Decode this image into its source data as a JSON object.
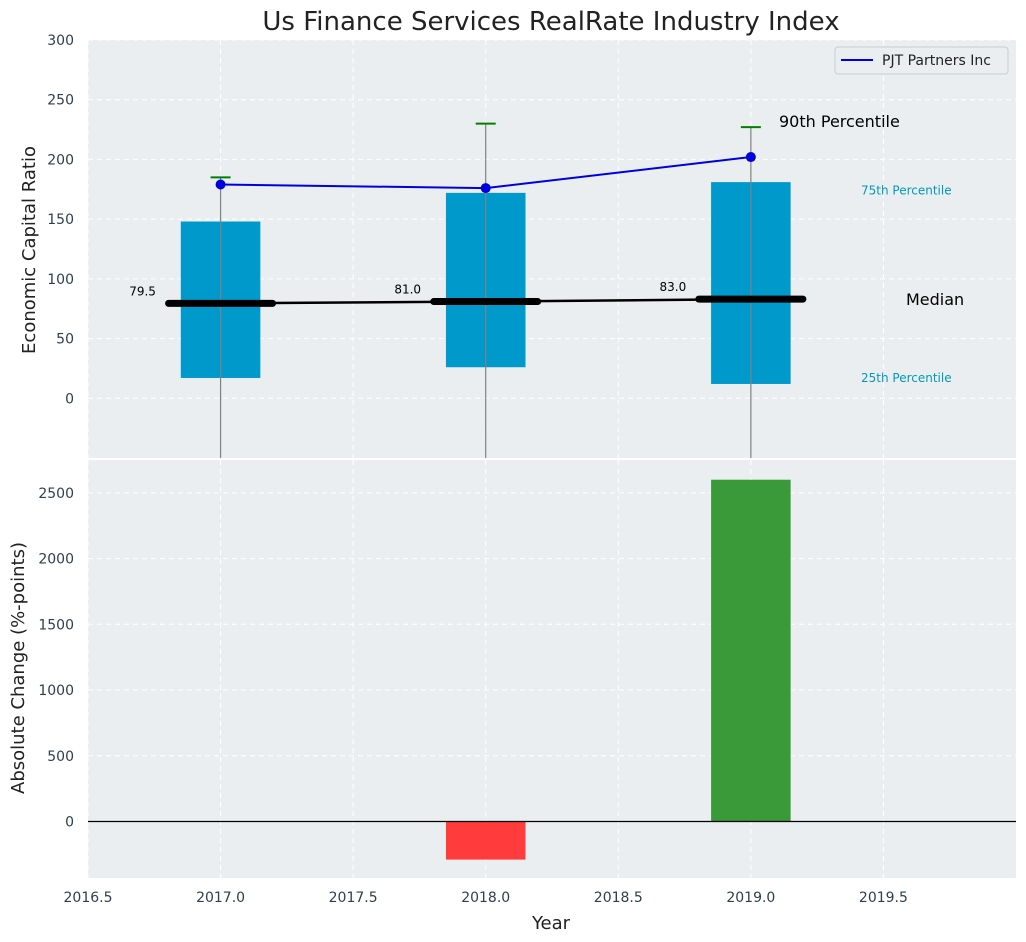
{
  "title": "Us Finance Services RealRate Industry Index",
  "colors": {
    "background": "#eaeef0",
    "box": "#0099cc",
    "company_line": "#0000dd",
    "median": "#000000",
    "whisker_cap": "#008000",
    "positive_change": "#3a9a3a",
    "negative_change": "#ff3b3b",
    "percentile_label": "#0099bb"
  },
  "chart_data": [
    {
      "type": "box",
      "ylabel": "Economic Capital Ratio",
      "ylim": [
        -50,
        300
      ],
      "yticks": [
        0,
        50,
        100,
        150,
        200,
        250,
        300
      ],
      "xlim": [
        2016.5,
        2020.0
      ],
      "grid": true,
      "legend": {
        "placement": "top-right",
        "entries": [
          "PJT Partners Inc"
        ]
      },
      "years": [
        2017,
        2018,
        2019
      ],
      "p25": [
        17,
        26,
        12
      ],
      "p75": [
        148,
        172,
        181
      ],
      "median": [
        79.5,
        81.0,
        83.0
      ],
      "median_labels": [
        "79.5",
        "81.0",
        "83.0"
      ],
      "p90": [
        185,
        230,
        227
      ],
      "series": [
        {
          "name": "PJT Partners Inc",
          "x": [
            2017,
            2018,
            2019
          ],
          "values": [
            179,
            176,
            202
          ]
        }
      ],
      "annotations": {
        "p90": "90th Percentile",
        "p75": "75th Percentile",
        "median": "Median",
        "p25": "25th Percentile"
      }
    },
    {
      "type": "bar",
      "xlabel": "Year",
      "ylabel": "Absolute Change (%-points)",
      "ylim": [
        -430,
        2750
      ],
      "yticks": [
        0,
        500,
        1000,
        1500,
        2000,
        2500
      ],
      "xlim": [
        2016.5,
        2020.0
      ],
      "xticks": [
        2016.5,
        2017.0,
        2017.5,
        2018.0,
        2018.5,
        2019.0,
        2019.5
      ],
      "xtick_labels": [
        "2016.5",
        "2017.0",
        "2017.5",
        "2018.0",
        "2018.5",
        "2019.0",
        "2019.5"
      ],
      "grid": true,
      "x": [
        2018,
        2019
      ],
      "values": [
        -290,
        2600
      ]
    }
  ]
}
